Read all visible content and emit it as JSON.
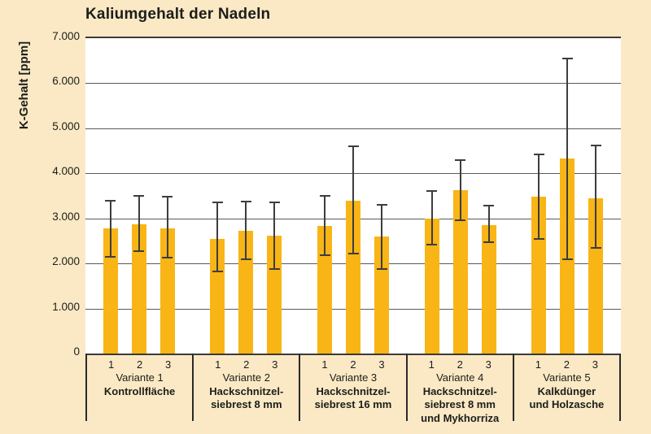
{
  "title": "Kaliumgehalt der Nadeln",
  "colors": {
    "background": "#fae9c4",
    "plot_background": "#ffffff",
    "bar": "#f8b515",
    "gridline": "#5a5a5a",
    "axis_line": "#3a3a3a",
    "error_bar": "#3d3d3d",
    "text": "#1d1d1b"
  },
  "chart_data": {
    "type": "bar",
    "title": "Kaliumgehalt der Nadeln",
    "ylabel": "K-Gehalt [ppm]",
    "ylim": [
      0,
      7000
    ],
    "grid": true,
    "error_bars": true,
    "yticks": [
      {
        "value": 7000,
        "label": "7.000"
      },
      {
        "value": 6000,
        "label": "6.000"
      },
      {
        "value": 5000,
        "label": "5.000"
      },
      {
        "value": 4000,
        "label": "4.000"
      },
      {
        "value": 3000,
        "label": "3.000"
      },
      {
        "value": 2000,
        "label": "2.000"
      },
      {
        "value": 1000,
        "label": "1.000"
      },
      {
        "value": 0,
        "label": "0"
      }
    ],
    "bar_labels": [
      "1",
      "2",
      "3"
    ],
    "groups": [
      {
        "variant": "Variante 1",
        "treatment_lines": [
          "Kontrollfläche"
        ],
        "values": [
          2775,
          2875,
          2775
        ],
        "error_low": [
          2150,
          2275,
          2125
        ],
        "error_high": [
          3400,
          3500,
          3475
        ]
      },
      {
        "variant": "Variante 2",
        "treatment_lines": [
          "Hackschnitzel-",
          "siebrest 8 mm"
        ],
        "values": [
          2550,
          2725,
          2625
        ],
        "error_low": [
          1825,
          2100,
          1875
        ],
        "error_high": [
          3350,
          3375,
          3350
        ]
      },
      {
        "variant": "Variante 3",
        "treatment_lines": [
          "Hackschnitzel-",
          "siebrest 16 mm"
        ],
        "values": [
          2825,
          3400,
          2600
        ],
        "error_low": [
          2175,
          2225,
          1875
        ],
        "error_high": [
          3500,
          4600,
          3300
        ]
      },
      {
        "variant": "Variante 4",
        "treatment_lines": [
          "Hackschnitzel-",
          "siebrest 8 mm",
          "und Mykhorriza"
        ],
        "values": [
          3000,
          3625,
          2850
        ],
        "error_low": [
          2425,
          2950,
          2475
        ],
        "error_high": [
          3600,
          4300,
          3275
        ]
      },
      {
        "variant": "Variante 5",
        "treatment_lines": [
          "Kalkdünger",
          "und Holzasche"
        ],
        "values": [
          3475,
          4325,
          3450
        ],
        "error_low": [
          2550,
          2100,
          2350
        ],
        "error_high": [
          4425,
          6550,
          4625
        ]
      }
    ]
  }
}
